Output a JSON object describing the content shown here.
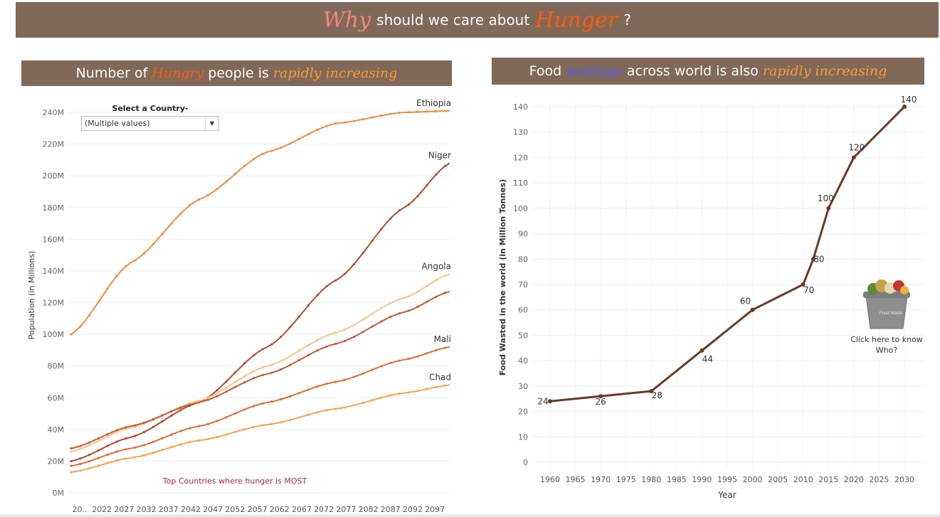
{
  "banner": {
    "part1": "Why",
    "part2": "should we care about",
    "part3": "Hunger",
    "part4": "?"
  },
  "left_panel": {
    "title_part1": "Number of",
    "title_part2": "Hungry",
    "title_part3": "people is",
    "title_part4": "rapidly increasing",
    "filter_label": "Select a Country-",
    "filter_value": "(Multiple values)",
    "note": "Top Countries where hunger is MOST"
  },
  "right_panel": {
    "title_part1": "Food",
    "title_part2": "wastage",
    "title_part3": "across world",
    "title_part4": "is also",
    "title_part5": "rapidly increasing",
    "image_caption_line1": "Click here to know",
    "image_caption_line2": "Who?",
    "bin_label": "Food Waste"
  },
  "chart_data": [
    {
      "type": "line",
      "title": "Number of Hungry people is rapidly increasing",
      "ylabel": "Population (in Millions)",
      "xlabel": "",
      "ylim": [
        0,
        240
      ],
      "y_ticks": [
        "0M",
        "20M",
        "40M",
        "60M",
        "80M",
        "100M",
        "120M",
        "140M",
        "160M",
        "180M",
        "200M",
        "220M",
        "240M"
      ],
      "x_ticks": [
        "20..",
        "2022",
        "2027",
        "2032",
        "2037",
        "2042",
        "2047",
        "2052",
        "2057",
        "2062",
        "2067",
        "2072",
        "2077",
        "2082",
        "2087",
        "2092",
        "2097"
      ],
      "x_range": [
        2017,
        2100
      ],
      "grid": true,
      "series": [
        {
          "name": "Ethiopia",
          "color": "#ef8e3f",
          "x": [
            2017,
            2030,
            2045,
            2060,
            2075,
            2090,
            2100
          ],
          "values": [
            100,
            145,
            185,
            215,
            233,
            240,
            241
          ]
        },
        {
          "name": "Niger",
          "color": "#b24a30",
          "x": [
            2017,
            2030,
            2045,
            2060,
            2075,
            2090,
            2100
          ],
          "values": [
            20,
            35,
            57,
            92,
            134,
            180,
            208
          ]
        },
        {
          "name": "Angola",
          "color": "#f8c48c",
          "x": [
            2017,
            2030,
            2045,
            2060,
            2075,
            2090,
            2100
          ],
          "values": [
            26,
            41,
            58,
            80,
            101,
            123,
            138
          ]
        },
        {
          "name": "",
          "color": "#c65a36",
          "x": [
            2017,
            2030,
            2045,
            2060,
            2075,
            2090,
            2100
          ],
          "values": [
            28,
            42,
            57,
            75,
            94,
            114,
            127
          ]
        },
        {
          "name": "Mali",
          "color": "#e36c3a",
          "x": [
            2017,
            2030,
            2045,
            2060,
            2075,
            2090,
            2100
          ],
          "values": [
            17,
            28,
            42,
            57,
            70,
            84,
            92
          ]
        },
        {
          "name": "Chad",
          "color": "#f6a54f",
          "x": [
            2017,
            2030,
            2045,
            2060,
            2075,
            2090,
            2100
          ],
          "values": [
            13,
            22,
            33,
            43,
            53,
            63,
            68
          ]
        }
      ]
    },
    {
      "type": "line",
      "title": "Food wastage across world is also rapidly increasing",
      "xlabel": "Year",
      "ylabel": "Food Wasted in the world (in Million Tonnes)",
      "ylim": [
        0,
        140
      ],
      "xlim": [
        1960,
        2030
      ],
      "y_ticks": [
        0,
        10,
        20,
        30,
        40,
        50,
        60,
        70,
        80,
        90,
        100,
        110,
        120,
        130,
        140
      ],
      "x_ticks": [
        1960,
        1965,
        1970,
        1975,
        1980,
        1985,
        1990,
        1995,
        2000,
        2005,
        2010,
        2015,
        2020,
        2025,
        2030
      ],
      "grid": true,
      "series": [
        {
          "name": "",
          "color": "#6b3a22",
          "x": [
            1960,
            1970,
            1980,
            1990,
            2000,
            2010,
            2012,
            2015,
            2020,
            2030
          ],
          "values": [
            24,
            26,
            28,
            44,
            60,
            70,
            80,
            100,
            120,
            140
          ]
        }
      ]
    }
  ]
}
